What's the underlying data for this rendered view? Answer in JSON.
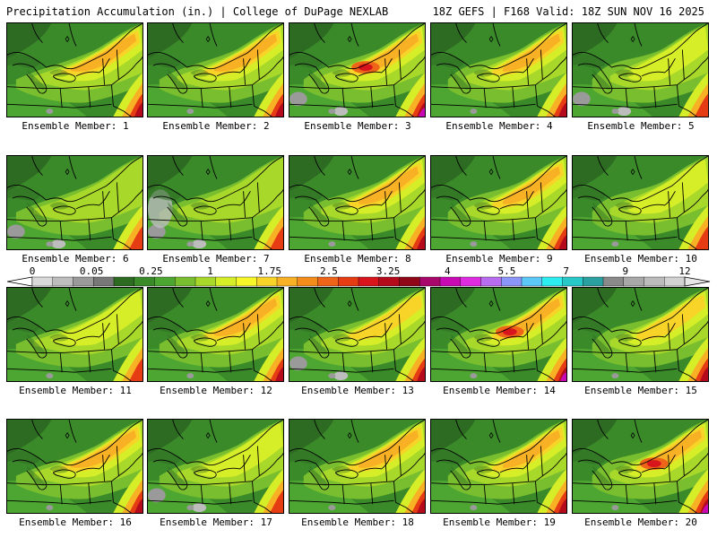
{
  "header": {
    "left_title": "Precipitation Accumulation (in.) | College of DuPage NEXLAB",
    "right_title": "18Z GEFS | F168 Valid: 18Z SUN NOV 16 2025"
  },
  "legend": {
    "labels": [
      "0",
      "0.05",
      "0.25",
      "1",
      "1.75",
      "2.5",
      "3.25",
      "4",
      "5.5",
      "7",
      "9",
      "12"
    ],
    "colors": [
      "#d9d9d9",
      "#bdbdbd",
      "#9a9a9a",
      "#787878",
      "#2e6b22",
      "#3a8a2a",
      "#4ea632",
      "#78be2e",
      "#a8d82a",
      "#d6ee28",
      "#f6f628",
      "#f8d428",
      "#f8b024",
      "#f48c1c",
      "#ee6418",
      "#e63c14",
      "#d8141c",
      "#b40a1c",
      "#900818",
      "#a8086a",
      "#c80ab4",
      "#e02ce0",
      "#b86cf0",
      "#8c96f8",
      "#5cc8f8",
      "#2ceef0",
      "#28c8c8",
      "#2aa0a0",
      "#8a8a8a",
      "#a8a8a8",
      "#bcbcbc",
      "#d2d2d2"
    ]
  },
  "panels": [
    {
      "label": "Ensemble Member: 1"
    },
    {
      "label": "Ensemble Member: 2"
    },
    {
      "label": "Ensemble Member: 3"
    },
    {
      "label": "Ensemble Member: 4"
    },
    {
      "label": "Ensemble Member: 5"
    },
    {
      "label": "Ensemble Member: 6"
    },
    {
      "label": "Ensemble Member: 7"
    },
    {
      "label": "Ensemble Member: 8"
    },
    {
      "label": "Ensemble Member: 9"
    },
    {
      "label": "Ensemble Member: 10"
    },
    {
      "label": "Ensemble Member: 11"
    },
    {
      "label": "Ensemble Member: 12"
    },
    {
      "label": "Ensemble Member: 13"
    },
    {
      "label": "Ensemble Member: 14"
    },
    {
      "label": "Ensemble Member: 15"
    },
    {
      "label": "Ensemble Member: 16"
    },
    {
      "label": "Ensemble Member: 17"
    },
    {
      "label": "Ensemble Member: 18"
    },
    {
      "label": "Ensemble Member: 19"
    },
    {
      "label": "Ensemble Member: 20"
    }
  ]
}
